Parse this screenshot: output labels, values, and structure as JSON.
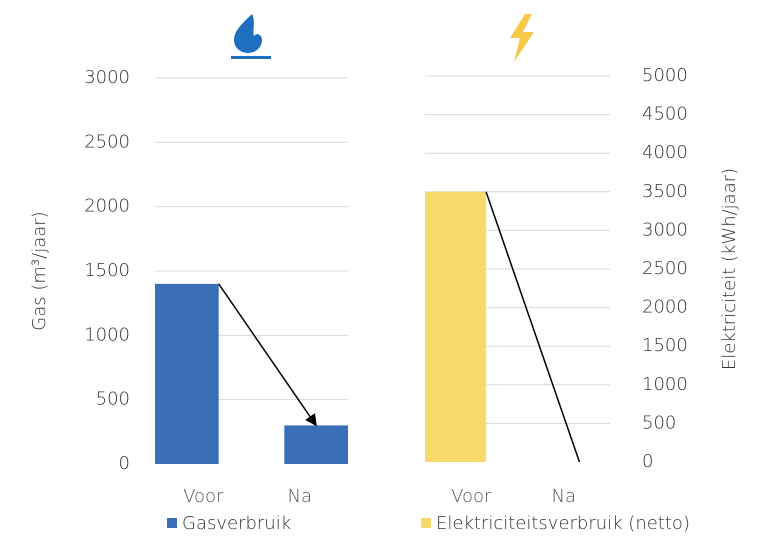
{
  "chart_data": [
    {
      "type": "bar",
      "ylabel": "Gas (m³/jaar)",
      "categories": [
        "Voor",
        "Na"
      ],
      "series": [
        {
          "name": "Gasverbruik",
          "color": "#3a6fb8",
          "values": [
            1400,
            300
          ]
        }
      ],
      "ylim": [
        0,
        3000
      ],
      "yticks": [
        0,
        500,
        1000,
        1500,
        2000,
        2500,
        3000
      ],
      "grid": true,
      "y_axis_position": "left"
    },
    {
      "type": "bar",
      "ylabel": "Elektriciteit (kWh/jaar)",
      "categories": [
        "Voor",
        "Na"
      ],
      "series": [
        {
          "name": "Elektriciteitsverbruik (netto)",
          "color": "#f7da6b",
          "values": [
            3500,
            0
          ]
        }
      ],
      "ylim": [
        0,
        5000
      ],
      "yticks": [
        0,
        500,
        1000,
        1500,
        2000,
        2500,
        3000,
        3500,
        4000,
        4500,
        5000
      ],
      "grid": true,
      "y_axis_position": "right"
    }
  ]
}
